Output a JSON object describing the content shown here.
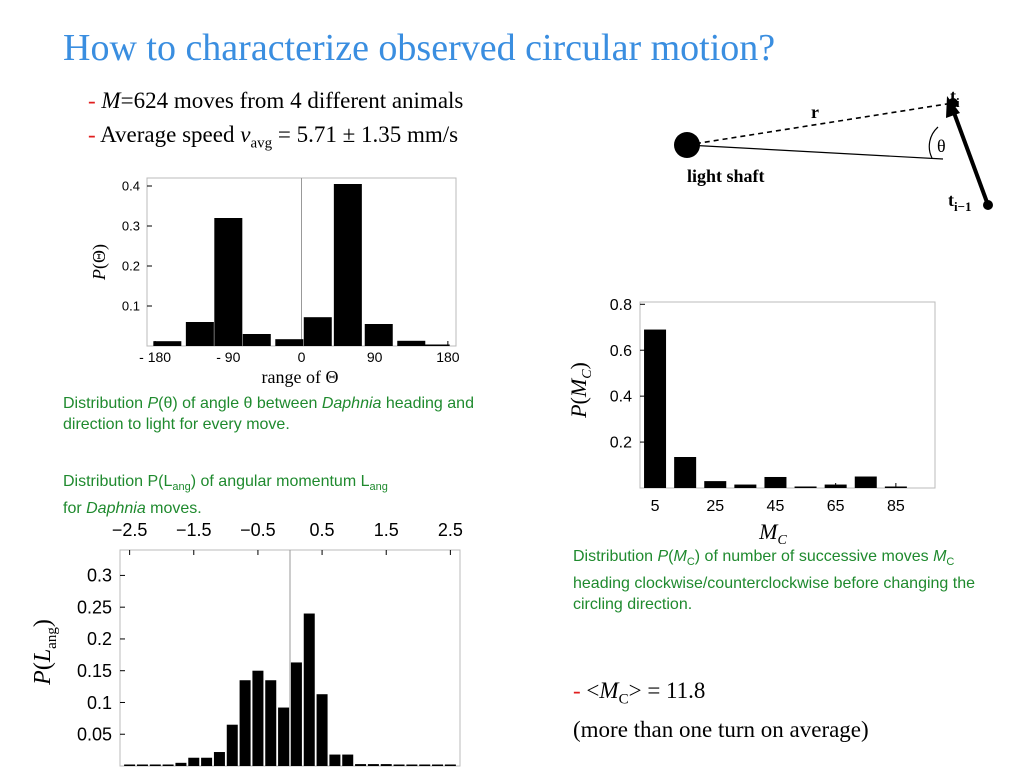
{
  "title": "How to characterize observed circular motion?",
  "bullets": {
    "b1": {
      "dash": "-",
      "m": "M",
      "rest": "=624 moves from 4 different animals"
    },
    "b2": {
      "dash": "-",
      "pre": "Average speed ",
      "v": "v",
      "sub": "avg",
      "post": " = 5.71 ± 1.35 mm/s"
    }
  },
  "diagram": {
    "t_i": "t",
    "t_i_sub": "i",
    "t_prev": "t",
    "t_prev_sub": "i−1",
    "r": "r",
    "theta": "θ",
    "light": "light shaft"
  },
  "captions": {
    "theta": {
      "a": "Distribution ",
      "p": "P",
      "b": "(θ) of angle θ between ",
      "daph": "Daphnia",
      "c": " heading and direction to light for every move."
    },
    "lang": {
      "a": "Distribution P(L",
      "sub1": "ang",
      "b": ") of angular momentum L",
      "sub2": "ang",
      "c": " for ",
      "daph": "Daphnia",
      "d": " moves."
    },
    "mc": {
      "a": "Distribution ",
      "p": "P",
      "b": "(",
      "m": "M",
      "sub": "C",
      "c": ") of number of successive moves ",
      "m2": "M",
      "sub2": "C",
      "d": " heading clockwise/counterclockwise before changing the circling direction."
    }
  },
  "mc_note": {
    "dash": "-",
    "pre": " <",
    "m": "M",
    "sub": "C",
    "post": "> = 11.8",
    "line2": "(more than one turn on average)"
  },
  "chart_data": [
    {
      "type": "bar",
      "x_centers": [
        -165,
        -125,
        -90,
        -55,
        -15,
        20,
        57,
        95,
        135,
        165
      ],
      "values": [
        0.012,
        0.06,
        0.32,
        0.03,
        0.017,
        0.072,
        0.405,
        0.055,
        0.013,
        0.0
      ],
      "xticks": [
        "- 180",
        "- 90",
        "0",
        "90",
        "180"
      ],
      "xtick_values": [
        -180,
        -90,
        0,
        90,
        180
      ],
      "yticks": [
        "0.1",
        "0.2",
        "0.3",
        "0.4"
      ],
      "ytick_values": [
        0.1,
        0.2,
        0.3,
        0.4
      ],
      "xlabel": "range of Θ",
      "ylabel": {
        "p": "P",
        "rest": "(Θ)"
      },
      "xlim": [
        -190,
        190
      ],
      "ylim": [
        0,
        0.42
      ]
    },
    {
      "type": "bar",
      "x_centers": [
        5,
        15,
        25,
        35,
        45,
        55,
        65,
        75,
        85
      ],
      "values": [
        0.69,
        0.135,
        0.03,
        0.015,
        0.048,
        0.0,
        0.015,
        0.05,
        0.0
      ],
      "xticks": [
        "5",
        "25",
        "45",
        "65",
        "85"
      ],
      "xtick_values": [
        5,
        25,
        45,
        65,
        85
      ],
      "yticks": [
        "0.2",
        "0.4",
        "0.6",
        "0.8"
      ],
      "ytick_values": [
        0.2,
        0.4,
        0.6,
        0.8
      ],
      "xlabel": {
        "m": "M",
        "sub": "C"
      },
      "ylabel": {
        "p": "P",
        "m": "M",
        "sub": "C"
      },
      "xlim": [
        0,
        98
      ],
      "ylim": [
        0,
        0.81
      ]
    },
    {
      "type": "bar",
      "bin_width": 0.2,
      "x_centers": [
        -2.5,
        -2.3,
        -2.1,
        -1.9,
        -1.7,
        -1.5,
        -1.3,
        -1.1,
        -0.9,
        -0.7,
        -0.5,
        -0.3,
        -0.1,
        0.1,
        0.3,
        0.5,
        0.7,
        0.9,
        1.1,
        1.3,
        1.5,
        1.7,
        1.9,
        2.1,
        2.3,
        2.5
      ],
      "values": [
        0.002,
        0.002,
        0.002,
        0.002,
        0.005,
        0.013,
        0.013,
        0.022,
        0.065,
        0.135,
        0.15,
        0.135,
        0.092,
        0.163,
        0.24,
        0.113,
        0.018,
        0.018,
        0.003,
        0.003,
        0.003,
        0.002,
        0.002,
        0.002,
        0.002,
        0.002
      ],
      "xticks": [
        "−2.5",
        "−1.5",
        "−0.5",
        "0.5",
        "1.5",
        "2.5"
      ],
      "xtick_values": [
        -2.5,
        -1.5,
        -0.5,
        0.5,
        1.5,
        2.5
      ],
      "yticks": [
        "0.05",
        "0.1",
        "0.15",
        "0.2",
        "0.25",
        "0.3"
      ],
      "ytick_values": [
        0.05,
        0.1,
        0.15,
        0.2,
        0.25,
        0.3
      ],
      "ylabel": {
        "p": "P",
        "l": "L",
        "sub": "ang"
      },
      "xlim": [
        -2.65,
        2.65
      ],
      "ylim": [
        0,
        0.34
      ]
    }
  ]
}
